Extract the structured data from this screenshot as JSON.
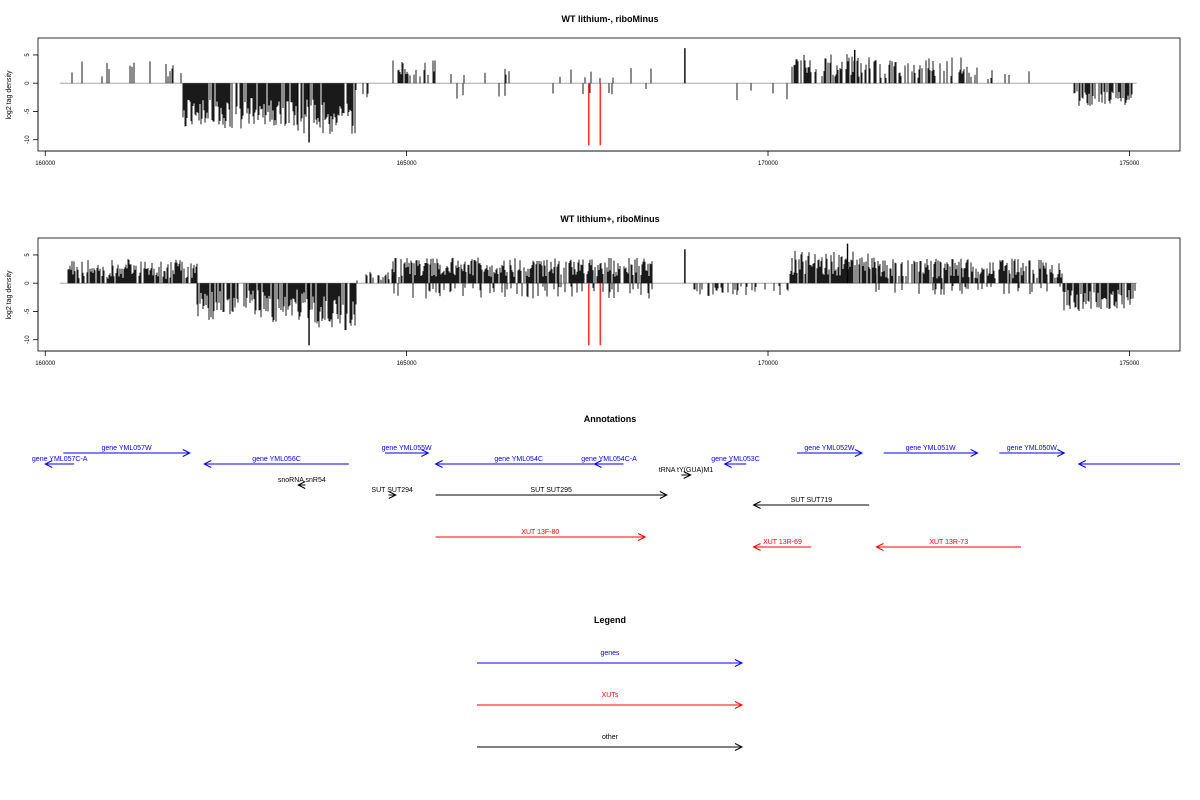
{
  "chart_data": [
    {
      "type": "bar",
      "title": "WT lithium-, riboMinus",
      "ylabel": "log2 tag density",
      "xlim": [
        159900,
        175700
      ],
      "ylim": [
        -12,
        8
      ],
      "x_ticks": [
        160000,
        165000,
        170000,
        175000
      ],
      "y_ticks": [
        -10,
        -5,
        0,
        5
      ],
      "x_tick_labels": [
        "160000",
        "165000",
        "170000",
        "175000"
      ],
      "y_tick_labels": [
        "-10",
        "-5",
        "0",
        "5"
      ],
      "bar_color": "#000000",
      "markers": [
        167520,
        167680
      ],
      "marker_color": "#ff3333",
      "segments": [
        {
          "start": 160300,
          "end": 161900,
          "sign": 1,
          "mean": 2.5,
          "amp": 0.9,
          "density": 0.12
        },
        {
          "start": 161900,
          "end": 162800,
          "sign": -1,
          "mean": 5.5,
          "amp": 1.6,
          "density": 0.85
        },
        {
          "start": 162800,
          "end": 163500,
          "sign": -1,
          "mean": 5.0,
          "amp": 1.6,
          "density": 0.85
        },
        {
          "start": 163500,
          "end": 164300,
          "sign": -1,
          "mean": 6.0,
          "amp": 2.0,
          "density": 0.85
        },
        {
          "start": 164300,
          "end": 164800,
          "sign": -1,
          "mean": 2.0,
          "amp": 0.8,
          "density": 0.06
        },
        {
          "start": 164800,
          "end": 165400,
          "sign": 1,
          "mean": 2.5,
          "amp": 1.0,
          "density": 0.35
        },
        {
          "start": 165400,
          "end": 168500,
          "sign": 1,
          "mean": 1.8,
          "amp": 0.6,
          "density": 0.06
        },
        {
          "start": 165400,
          "end": 168500,
          "sign": -1,
          "mean": 1.8,
          "amp": 0.6,
          "density": 0.04
        },
        {
          "start": 169500,
          "end": 170300,
          "sign": -1,
          "mean": 2.2,
          "amp": 0.8,
          "density": 0.08
        },
        {
          "start": 170300,
          "end": 171400,
          "sign": 1,
          "mean": 3.2,
          "amp": 1.3,
          "density": 0.7
        },
        {
          "start": 171400,
          "end": 172900,
          "sign": 1,
          "mean": 2.8,
          "amp": 1.2,
          "density": 0.5
        },
        {
          "start": 172900,
          "end": 173800,
          "sign": 1,
          "mean": 2.0,
          "amp": 0.8,
          "density": 0.06
        },
        {
          "start": 174200,
          "end": 175100,
          "sign": -1,
          "mean": 2.6,
          "amp": 0.9,
          "density": 0.55
        }
      ],
      "peaks": [
        {
          "x": 163650,
          "y": -10.5
        },
        {
          "x": 168850,
          "y": 6.2
        },
        {
          "x": 171200,
          "y": 5.9
        }
      ]
    },
    {
      "type": "bar",
      "title": "WT lithium+, riboMinus",
      "ylabel": "log2 tag density",
      "xlim": [
        159900,
        175700
      ],
      "ylim": [
        -12,
        8
      ],
      "x_ticks": [
        160000,
        165000,
        170000,
        175000
      ],
      "y_ticks": [
        -10,
        -5,
        0,
        5
      ],
      "x_tick_labels": [
        "160000",
        "165000",
        "170000",
        "175000"
      ],
      "y_tick_labels": [
        "-10",
        "-5",
        "0",
        "5"
      ],
      "bar_color": "#000000",
      "markers": [
        167520,
        167680
      ],
      "marker_color": "#ff3333",
      "segments": [
        {
          "start": 160300,
          "end": 162100,
          "sign": 1,
          "mean": 2.5,
          "amp": 1.1,
          "density": 0.75
        },
        {
          "start": 162100,
          "end": 163700,
          "sign": -1,
          "mean": 4.0,
          "amp": 1.8,
          "density": 0.8
        },
        {
          "start": 163700,
          "end": 164300,
          "sign": -1,
          "mean": 5.5,
          "amp": 2.2,
          "density": 0.8
        },
        {
          "start": 164300,
          "end": 164800,
          "sign": 1,
          "mean": 1.2,
          "amp": 0.5,
          "density": 0.35
        },
        {
          "start": 164800,
          "end": 168400,
          "sign": 1,
          "mean": 2.8,
          "amp": 1.1,
          "density": 0.85
        },
        {
          "start": 164800,
          "end": 168400,
          "sign": -1,
          "mean": 1.6,
          "amp": 0.7,
          "density": 0.25
        },
        {
          "start": 168900,
          "end": 170300,
          "sign": -1,
          "mean": 1.4,
          "amp": 0.6,
          "density": 0.3
        },
        {
          "start": 170300,
          "end": 171500,
          "sign": 1,
          "mean": 3.5,
          "amp": 1.4,
          "density": 0.9
        },
        {
          "start": 171500,
          "end": 174100,
          "sign": 1,
          "mean": 2.6,
          "amp": 1.1,
          "density": 0.75
        },
        {
          "start": 171500,
          "end": 174100,
          "sign": -1,
          "mean": 1.3,
          "amp": 0.5,
          "density": 0.2
        },
        {
          "start": 174100,
          "end": 175100,
          "sign": -1,
          "mean": 3.0,
          "amp": 1.2,
          "density": 0.75
        }
      ],
      "peaks": [
        {
          "x": 163650,
          "y": -11.0
        },
        {
          "x": 168850,
          "y": 6.0
        },
        {
          "x": 171100,
          "y": 7.0
        }
      ]
    }
  ],
  "annotations": {
    "title": "Annotations",
    "xlim": [
      159900,
      175700
    ],
    "features": [
      {
        "label": "gene YML057W",
        "start": 160250,
        "end": 162000,
        "dir": "right",
        "color": "#0000ff",
        "row": "gene_upper"
      },
      {
        "label": "gene YML057C-A",
        "start": 160000,
        "end": 160400,
        "dir": "left",
        "color": "#0000ff",
        "row": "gene_lower"
      },
      {
        "label": "gene YML056C",
        "start": 162200,
        "end": 164200,
        "dir": "left",
        "color": "#0000ff",
        "row": "gene_lower"
      },
      {
        "label": "gene YML055W",
        "start": 164700,
        "end": 165300,
        "dir": "right",
        "color": "#0000ff",
        "row": "gene_upper"
      },
      {
        "label": "gene YML054C",
        "start": 165400,
        "end": 167700,
        "dir": "left",
        "color": "#0000ff",
        "row": "gene_lower"
      },
      {
        "label": "gene YML054C-A",
        "start": 167600,
        "end": 168000,
        "dir": "left",
        "color": "#0000ff",
        "row": "gene_lower"
      },
      {
        "label": "gene YML053C",
        "start": 169400,
        "end": 169700,
        "dir": "left",
        "color": "#0000ff",
        "row": "gene_lower"
      },
      {
        "label": "gene YML052W",
        "start": 170400,
        "end": 171300,
        "dir": "right",
        "color": "#0000ff",
        "row": "gene_upper"
      },
      {
        "label": "gene YML051W",
        "start": 171600,
        "end": 172900,
        "dir": "right",
        "color": "#0000ff",
        "row": "gene_upper"
      },
      {
        "label": "gene YML050W",
        "start": 173200,
        "end": 174100,
        "dir": "right",
        "color": "#0000ff",
        "row": "gene_upper"
      },
      {
        "label": "",
        "start": 174300,
        "end": 175700,
        "dir": "left",
        "color": "#0000ff",
        "row": "gene_lower"
      },
      {
        "label": "snoRNA snR54",
        "start": 163500,
        "end": 163600,
        "dir": "left",
        "color": "#000000",
        "row": "other_a"
      },
      {
        "label": "SUT SUT294",
        "start": 164750,
        "end": 164850,
        "dir": "right",
        "color": "#000000",
        "row": "other_b"
      },
      {
        "label": "tRNA tY(GUA)M1",
        "start": 168800,
        "end": 168930,
        "dir": "right",
        "color": "#000000",
        "row": "trna"
      },
      {
        "label": "SUT SUT295",
        "start": 165400,
        "end": 168600,
        "dir": "right",
        "color": "#000000",
        "row": "other_b"
      },
      {
        "label": "SUT SUT719",
        "start": 169800,
        "end": 171400,
        "dir": "left",
        "color": "#000000",
        "row": "other_c"
      },
      {
        "label": "XUT 13F-80",
        "start": 165400,
        "end": 168300,
        "dir": "right",
        "color": "#ff0000",
        "row": "xut_a"
      },
      {
        "label": "XUT 13R-69",
        "start": 169800,
        "end": 170600,
        "dir": "left",
        "color": "#ff0000",
        "row": "xut_b"
      },
      {
        "label": "XUT 13R-73",
        "start": 171500,
        "end": 173500,
        "dir": "left",
        "color": "#ff0000",
        "row": "xut_b"
      }
    ]
  },
  "legend": {
    "title": "Legend",
    "items": [
      {
        "label": "genes",
        "color": "#0000ff"
      },
      {
        "label": "XUTs",
        "color": "#ff0000"
      },
      {
        "label": "other",
        "color": "#000000"
      }
    ]
  }
}
